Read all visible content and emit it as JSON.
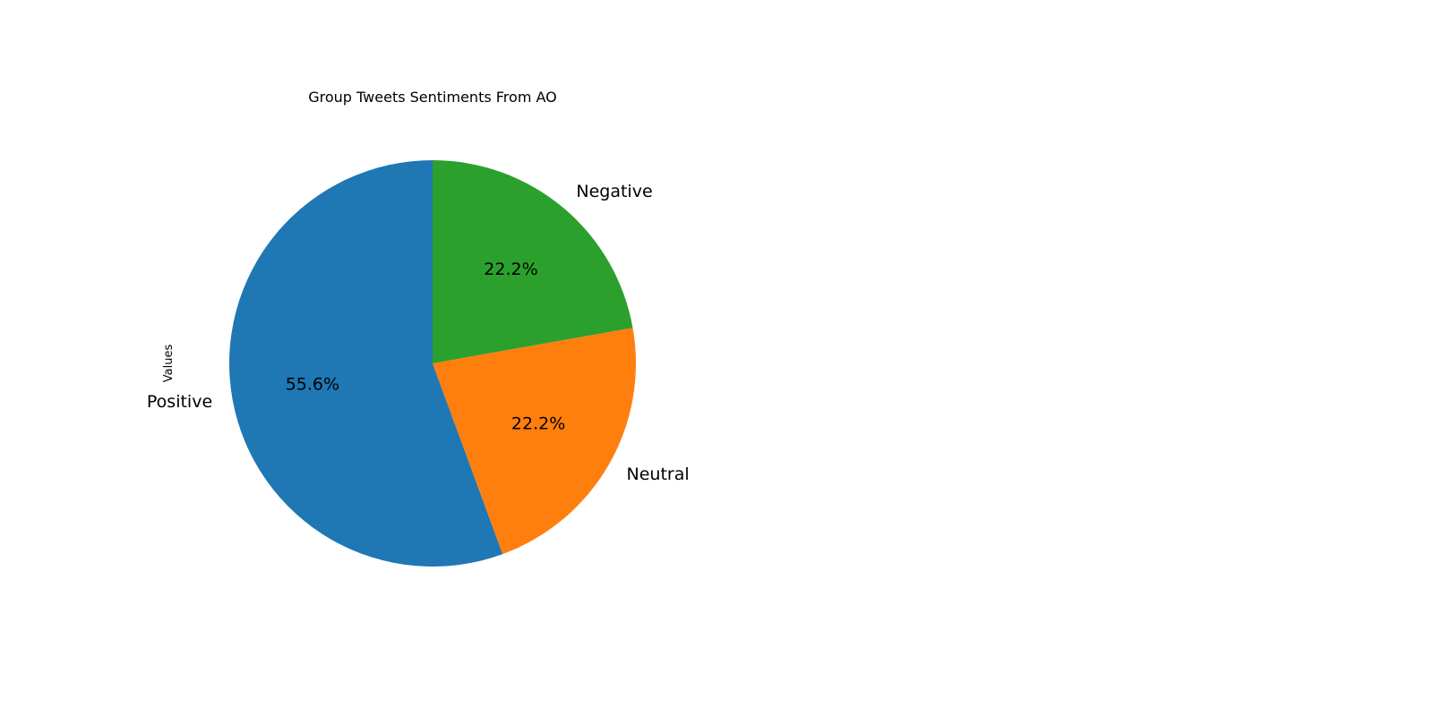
{
  "chart_data": {
    "type": "pie",
    "title": "Group Tweets Sentiments From AO",
    "ylabel": "Values",
    "slices": [
      {
        "label": "Positive",
        "value": 55.6,
        "pct_label": "55.6%",
        "color": "#1f77b4"
      },
      {
        "label": "Neutral",
        "value": 22.2,
        "pct_label": "22.2%",
        "color": "#ff7f0e"
      },
      {
        "label": "Negative",
        "value": 22.2,
        "pct_label": "22.2%",
        "color": "#2ca02c"
      }
    ],
    "start_angle": 90,
    "direction": "counterclockwise"
  }
}
